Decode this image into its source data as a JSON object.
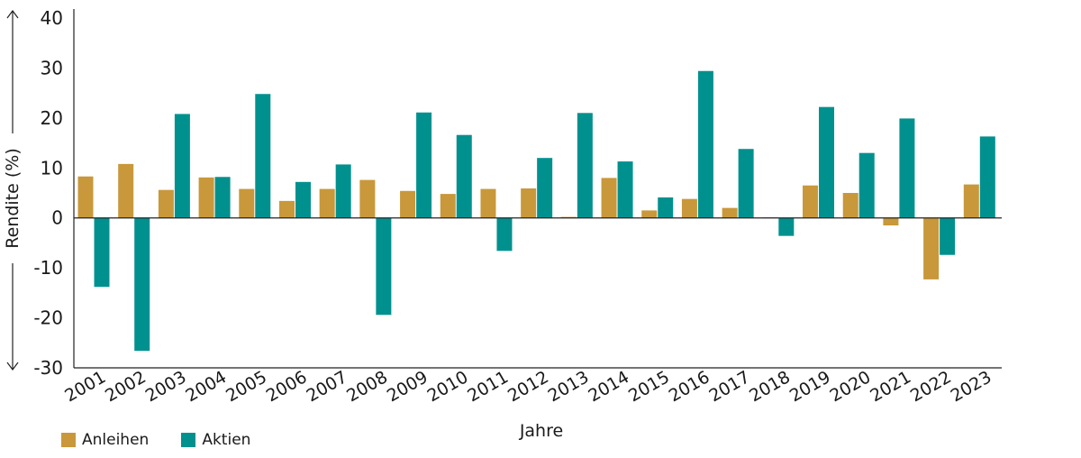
{
  "chart_data": {
    "type": "bar",
    "title": "",
    "xlabel": "Jahre",
    "ylabel": "Rendite (%)",
    "ylim": [
      -30,
      40
    ],
    "yticks": [
      -30,
      -20,
      -10,
      0,
      10,
      20,
      30,
      40
    ],
    "categories": [
      "2001",
      "2002",
      "2003",
      "2004",
      "2005",
      "2006",
      "2007",
      "2008",
      "2009",
      "2010",
      "2011",
      "2012",
      "2013",
      "2014",
      "2015",
      "2016",
      "2017",
      "2018",
      "2019",
      "2020",
      "2021",
      "2022",
      "2023"
    ],
    "series": [
      {
        "name": "Anleihen",
        "color": "#c8983a",
        "values": [
          8.3,
          10.8,
          5.6,
          8.1,
          5.8,
          3.4,
          5.8,
          7.6,
          5.4,
          4.8,
          5.8,
          5.9,
          0.2,
          8.0,
          1.5,
          3.8,
          2.0,
          0.1,
          6.5,
          5.0,
          -1.5,
          -12.3,
          6.7
        ]
      },
      {
        "name": "Aktien",
        "color": "#00918f",
        "values": [
          -13.8,
          -26.6,
          20.8,
          8.2,
          24.8,
          7.2,
          10.7,
          -19.4,
          21.1,
          16.6,
          -6.6,
          12.0,
          21.0,
          11.3,
          4.1,
          29.4,
          13.8,
          -3.6,
          22.2,
          13.0,
          19.9,
          -7.4,
          16.3
        ]
      }
    ],
    "grid": false,
    "legend_position": "bottom-left"
  }
}
